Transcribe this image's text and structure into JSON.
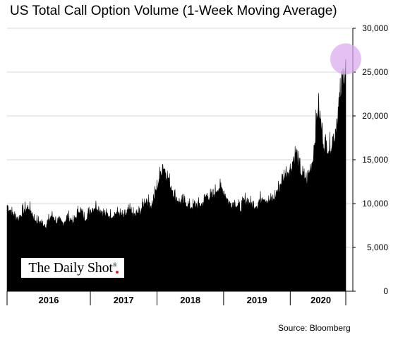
{
  "header": {
    "title": "US Total Call Option Volume (1-Week Moving Average)"
  },
  "footer": {
    "source": "Source: Bloomberg"
  },
  "logo": {
    "text": "The Daily Shot",
    "reg_mark": "®"
  },
  "colors": {
    "series": "#000000",
    "highlight": "#d7a6ee",
    "axis": "#000000"
  },
  "chart_data": {
    "type": "area",
    "title": "US Total Call Option Volume (1-Week Moving Average)",
    "xlabel": "",
    "ylabel": "",
    "ylim": [
      0,
      30000
    ],
    "y_ticks": [
      0,
      5000,
      10000,
      15000,
      20000,
      25000,
      30000
    ],
    "y_tick_labels": [
      "0",
      "5,000",
      "10,000",
      "15,000",
      "20,000",
      "25,000",
      "30,000"
    ],
    "y_axis_side": "right",
    "x_range": [
      "2015-10",
      "2020-11"
    ],
    "categories": [
      "2016",
      "2017",
      "2018",
      "2019",
      "2020"
    ],
    "category_bounds": [
      [
        "2015-10",
        "2016-12"
      ],
      [
        "2017-01",
        "2017-12"
      ],
      [
        "2018-01",
        "2018-12"
      ],
      [
        "2019-01",
        "2019-12"
      ],
      [
        "2020-01",
        "2020-11"
      ]
    ],
    "grid": true,
    "legend": "none",
    "highlight": {
      "x": "2020-11",
      "y": 26500
    },
    "series": [
      {
        "values": [
          [
            "2015-10",
            9800
          ],
          [
            "2015-11",
            8900
          ],
          [
            "2015-12",
            8300
          ],
          [
            "2016-01",
            9400
          ],
          [
            "2016-02",
            9600
          ],
          [
            "2016-03",
            8200
          ],
          [
            "2016-04",
            7900
          ],
          [
            "2016-05",
            7600
          ],
          [
            "2016-06",
            8700
          ],
          [
            "2016-07",
            8000
          ],
          [
            "2016-08",
            7800
          ],
          [
            "2016-09",
            8600
          ],
          [
            "2016-10",
            7900
          ],
          [
            "2016-11",
            9500
          ],
          [
            "2016-12",
            8400
          ],
          [
            "2017-01",
            9300
          ],
          [
            "2017-02",
            9800
          ],
          [
            "2017-03",
            9200
          ],
          [
            "2017-04",
            8700
          ],
          [
            "2017-05",
            8800
          ],
          [
            "2017-06",
            9000
          ],
          [
            "2017-07",
            8500
          ],
          [
            "2017-08",
            9300
          ],
          [
            "2017-09",
            8700
          ],
          [
            "2017-10",
            9200
          ],
          [
            "2017-11",
            10600
          ],
          [
            "2017-12",
            9800
          ],
          [
            "2018-01",
            12000
          ],
          [
            "2018-02",
            14500
          ],
          [
            "2018-03",
            13000
          ],
          [
            "2018-04",
            11200
          ],
          [
            "2018-05",
            10200
          ],
          [
            "2018-06",
            10300
          ],
          [
            "2018-07",
            9700
          ],
          [
            "2018-08",
            9900
          ],
          [
            "2018-09",
            9900
          ],
          [
            "2018-10",
            11000
          ],
          [
            "2018-11",
            10800
          ],
          [
            "2018-12",
            12000
          ],
          [
            "2019-01",
            11500
          ],
          [
            "2019-02",
            10000
          ],
          [
            "2019-03",
            10200
          ],
          [
            "2019-04",
            9500
          ],
          [
            "2019-05",
            10600
          ],
          [
            "2019-06",
            10000
          ],
          [
            "2019-07",
            9900
          ],
          [
            "2019-08",
            11000
          ],
          [
            "2019-09",
            10300
          ],
          [
            "2019-10",
            10600
          ],
          [
            "2019-11",
            12000
          ],
          [
            "2019-12",
            13500
          ],
          [
            "2020-01",
            14000
          ],
          [
            "2020-02",
            16000
          ],
          [
            "2020-03",
            13500
          ],
          [
            "2020-04",
            12800
          ],
          [
            "2020-05",
            15000
          ],
          [
            "2020-06",
            21500
          ],
          [
            "2020-07",
            17000
          ],
          [
            "2020-08",
            16500
          ],
          [
            "2020-09",
            18000
          ],
          [
            "2020-10",
            22500
          ],
          [
            "2020-11",
            26500
          ]
        ]
      }
    ]
  }
}
